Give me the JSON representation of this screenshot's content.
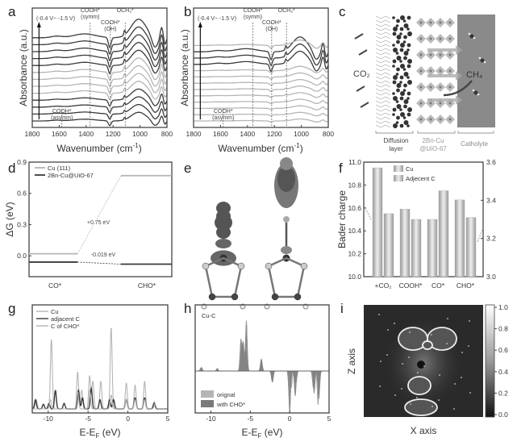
{
  "panel_labels": {
    "a": "a",
    "b": "b",
    "c": "c",
    "d": "d",
    "e": "e",
    "f": "f",
    "g": "g",
    "h": "h",
    "i": "i"
  },
  "colors": {
    "dark": "#3a3a3a",
    "mid": "#7a7a7a",
    "light": "#b5b5b5",
    "frame": "#444444"
  },
  "chart_data": [
    {
      "id": "a",
      "type": "line",
      "xlabel": "Wavenumber (cm",
      "xlabel_sup": "-1",
      "xlabel_end": ")",
      "ylabel": "Absorbance (a.u.)",
      "xlim": [
        1800,
        800
      ],
      "xticks": [
        "1800",
        "1600",
        "1400",
        "1200",
        "1000",
        "800"
      ],
      "curve_count": 13,
      "potential_range": "(-0.4 V~ -1.5 V)",
      "annotations": [
        {
          "label": "COOH*",
          "sub": "(symm)",
          "x": 1370
        },
        {
          "label": "COOH*",
          "sub": "(OH)",
          "x": 1220
        },
        {
          "label": "OCH₃*",
          "sub": "",
          "x": 1110
        },
        {
          "label": "COOH*",
          "sub": "(asymm)",
          "x": 1580
        }
      ],
      "grid": false
    },
    {
      "id": "b",
      "type": "line",
      "xlabel": "Wavenumber (cm",
      "xlabel_sup": "-1",
      "xlabel_end": ")",
      "ylabel": "Absorbance (a.u.)",
      "xlim": [
        1800,
        800
      ],
      "xticks": [
        "1800",
        "1600",
        "1400",
        "1200",
        "1000",
        "800"
      ],
      "curve_count": 13,
      "potential_range": "(-0.4 V~ -1.5 V)",
      "annotations": [
        {
          "label": "COOH*",
          "sub": "(symm)",
          "x": 1360
        },
        {
          "label": "COOH*",
          "sub": "(OH)",
          "x": 1220
        },
        {
          "label": "OCH₃*",
          "sub": "",
          "x": 1110
        },
        {
          "label": "COOH*",
          "sub": "(asymm)",
          "x": 1580
        }
      ],
      "grid": false
    },
    {
      "id": "d",
      "type": "line",
      "ylabel": "ΔG (eV)",
      "ylim": [
        -0.2,
        0.9
      ],
      "yticks": [
        "0.0",
        "0.3",
        "0.6",
        "0.9"
      ],
      "categories": [
        "CO*",
        "CHO*"
      ],
      "series": [
        {
          "name": "Cu (111)",
          "values": [
            0.02,
            0.77
          ]
        },
        {
          "name": "2Bn-Cu@UiO-67",
          "values": [
            -0.06,
            -0.08
          ]
        }
      ],
      "annotations": [
        "+0.75 eV",
        "-0.019 eV"
      ],
      "legend": "top-left"
    },
    {
      "id": "f",
      "type": "bar",
      "ylabel": "Bader charge",
      "ylim": [
        10.0,
        11.0
      ],
      "yticks": [
        "10.0",
        "10.2",
        "10.4",
        "10.6",
        "10.8",
        "11.0"
      ],
      "y2lim": [
        3.0,
        3.6
      ],
      "y2ticks": [
        "3.0",
        "3.2",
        "3.4",
        "3.6"
      ],
      "categories": [
        "+CO₂",
        "COOH*",
        "CO*",
        "CHO*"
      ],
      "series": [
        {
          "name": "Cu",
          "axis": "left",
          "values": [
            10.95,
            10.59,
            10.5,
            10.67
          ]
        },
        {
          "name": "Adjecent C",
          "axis": "right",
          "values": [
            3.33,
            3.3,
            3.45,
            3.31
          ]
        }
      ],
      "legend": "top"
    },
    {
      "id": "g",
      "type": "line",
      "xlabel": "E-E",
      "xlabel_sub": "F",
      "xlabel_end": " (eV)",
      "xlim": [
        -12,
        5
      ],
      "xticks": [
        "-10",
        "-5",
        "0",
        "5"
      ],
      "series": [
        {
          "name": "Cu",
          "peaks": [
            [
              -11.5,
              0.1
            ],
            [
              -9.6,
              0.75
            ],
            [
              -6.3,
              0.4
            ],
            [
              -5.8,
              0.2
            ],
            [
              -4.8,
              0.36
            ],
            [
              -4.4,
              0.3
            ],
            [
              -3.4,
              0.3
            ],
            [
              -2.1,
              0.88
            ],
            [
              -0.2,
              0.28
            ],
            [
              0.9,
              0.26
            ],
            [
              2.1,
              0.3
            ],
            [
              3.3,
              0.08
            ]
          ]
        },
        {
          "name": "adjacent C",
          "peaks": [
            [
              -11.6,
              0.1
            ],
            [
              -10.6,
              0.05
            ],
            [
              -9.9,
              0.06
            ],
            [
              -9.1,
              0.2
            ],
            [
              -8.0,
              0.06
            ],
            [
              -6.2,
              0.2
            ],
            [
              -5.7,
              0.12
            ],
            [
              -4.6,
              0.22
            ],
            [
              -3.5,
              0.1
            ],
            [
              -2.3,
              0.1
            ],
            [
              -1.8,
              0.1
            ],
            [
              -0.2,
              0.1
            ],
            [
              0.9,
              0.12
            ],
            [
              2.1,
              0.12
            ],
            [
              3.3,
              0.06
            ]
          ]
        },
        {
          "name": "C of CHO*",
          "peaks": [
            [
              -9.7,
              0.1
            ],
            [
              -6.3,
              0.18
            ],
            [
              -4.8,
              0.2
            ],
            [
              -2.1,
              0.15
            ],
            [
              -0.2,
              0.1
            ],
            [
              0.9,
              0.1
            ],
            [
              2.1,
              0.1
            ],
            [
              3.4,
              0.05
            ]
          ]
        }
      ],
      "legend": "top-left"
    },
    {
      "id": "h",
      "type": "area",
      "title": "Cu-C",
      "xlabel": "E-E",
      "xlabel_sub": "F",
      "xlabel_end": " (eV)",
      "xlim": [
        -12,
        5
      ],
      "xticks": [
        "-10",
        "-5",
        "0",
        "5"
      ],
      "series": [
        {
          "name": "orignal",
          "peaks": [
            [
              -11.3,
              0.05
            ],
            [
              -9.2,
              0.04
            ],
            [
              -6.0,
              0.45
            ],
            [
              -5.6,
              0.35
            ],
            [
              -3.6,
              0.2
            ],
            [
              -2.2,
              -0.2
            ],
            [
              0.2,
              -0.3
            ],
            [
              0.8,
              -0.2
            ],
            [
              3.0,
              -0.3
            ],
            [
              3.6,
              -0.6
            ]
          ]
        },
        {
          "name": "with CHO*",
          "peaks": [
            [
              -11.2,
              0.07
            ],
            [
              -9.2,
              0.05
            ],
            [
              -6.2,
              0.55
            ],
            [
              -5.9,
              0.5
            ],
            [
              -5.5,
              0.9
            ],
            [
              -3.6,
              0.22
            ],
            [
              -2.2,
              -0.2
            ],
            [
              0.0,
              -0.75
            ],
            [
              0.7,
              -0.45
            ],
            [
              3.1,
              -0.4
            ],
            [
              3.7,
              -0.5
            ]
          ]
        }
      ],
      "legend": "bottom-left"
    },
    {
      "id": "i",
      "type": "heatmap",
      "xlabel": "X axis",
      "ylabel": "Z axis",
      "colorbar_range": [
        0.0,
        1.0
      ],
      "colorbar_ticks": [
        "1.0",
        "0.8",
        "0.6",
        "0.4",
        "0.2",
        "0.0"
      ]
    }
  ],
  "schematic": {
    "co2": "CO₂",
    "ch4": "CH₄",
    "layers": [
      "Diffusion",
      "layer",
      "2Bn-Cu",
      "@UiO-67",
      "Catholyte"
    ]
  }
}
